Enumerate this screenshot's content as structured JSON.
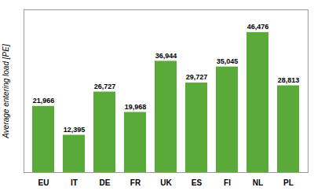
{
  "chart_data": {
    "type": "bar",
    "categories": [
      "EU",
      "IT",
      "DE",
      "FR",
      "UK",
      "ES",
      "FI",
      "NL",
      "PL"
    ],
    "values": [
      21966,
      12395,
      26727,
      19968,
      36944,
      29727,
      35045,
      46476,
      28813
    ],
    "value_labels": [
      "21,966",
      "12,395",
      "26,727",
      "19,968",
      "36,944",
      "29,727",
      "35,045",
      "46,476",
      "28,813"
    ],
    "color": "#5aaa3a",
    "ylabel": "Average entering load [PE]",
    "ylim": [
      0,
      54000
    ],
    "tick_labels": "x",
    "data_labels": true
  }
}
